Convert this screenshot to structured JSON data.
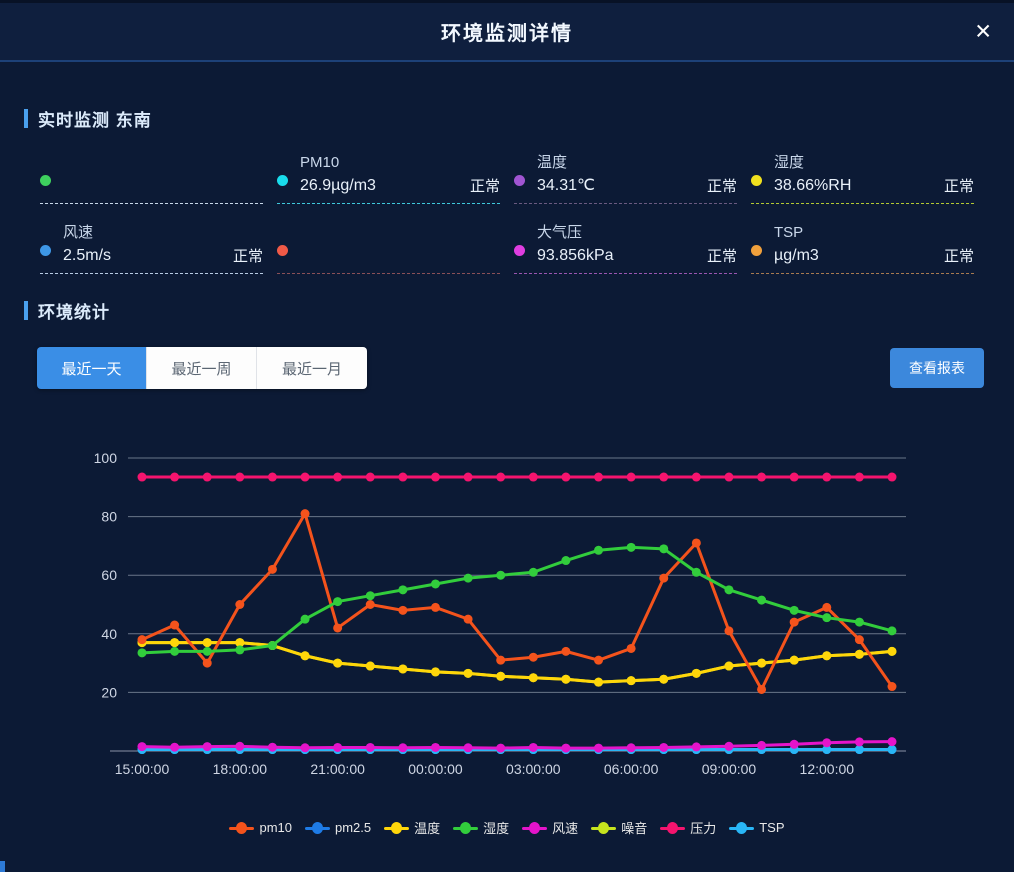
{
  "header": {
    "title": "环境监测详情",
    "close_glyph": "✕"
  },
  "realtime": {
    "section_title": "实时监测 东南",
    "cards": [
      {
        "label": "",
        "value": "",
        "status": "",
        "dot_color": "#3ed05e",
        "dash_color": "#c8d8ea"
      },
      {
        "label": "PM10",
        "value": "26.9µg/m3",
        "status": "正常",
        "dot_color": "#19dcec",
        "dash_color": "#3fc8dc"
      },
      {
        "label": "温度",
        "value": "34.31℃",
        "status": "正常",
        "dot_color": "#a155d2",
        "dash_color": "#6a5a80"
      },
      {
        "label": "湿度",
        "value": "38.66%RH",
        "status": "正常",
        "dot_color": "#f0e01e",
        "dash_color": "#b4c832"
      },
      {
        "label": "风速",
        "value": "2.5m/s",
        "status": "正常",
        "dot_color": "#3e97e6",
        "dash_color": "#b8cce4"
      },
      {
        "label": "",
        "value": "",
        "status": "",
        "dot_color": "#f15a47",
        "dash_color": "#8a5058"
      },
      {
        "label": "大气压",
        "value": "93.856kPa",
        "status": "正常",
        "dot_color": "#e03ee0",
        "dash_color": "#9a55b0"
      },
      {
        "label": "TSP",
        "value": "µg/m3",
        "status": "正常",
        "dot_color": "#f0a03c",
        "dash_color": "#a87a50"
      }
    ]
  },
  "stats": {
    "section_title": "环境统计",
    "tabs": [
      {
        "label": "最近一天",
        "active": true
      },
      {
        "label": "最近一周",
        "active": false
      },
      {
        "label": "最近一月",
        "active": false
      }
    ],
    "report_button": "查看报表"
  },
  "chart_data": {
    "type": "line",
    "title": "",
    "xlabel": "",
    "ylabel": "",
    "ylim": [
      0,
      100
    ],
    "y_ticks": [
      0,
      20,
      40,
      60,
      80,
      100
    ],
    "grid": true,
    "legend_position": "bottom",
    "tick_every": 3,
    "categories": [
      "15:00:00",
      "16:00:00",
      "17:00:00",
      "18:00:00",
      "19:00:00",
      "20:00:00",
      "21:00:00",
      "22:00:00",
      "23:00:00",
      "00:00:00",
      "01:00:00",
      "02:00:00",
      "03:00:00",
      "04:00:00",
      "05:00:00",
      "06:00:00",
      "07:00:00",
      "08:00:00",
      "09:00:00",
      "10:00:00",
      "11:00:00",
      "12:00:00",
      "13:00:00",
      "14:00:00"
    ],
    "shown_tick_labels": [
      "15:00:00",
      "18:00:00",
      "21:00:00",
      "00:00:00",
      "03:00:00",
      "06:00:00",
      "09:00:00",
      "12:00:00"
    ],
    "series": [
      {
        "name": "pm10",
        "color": "#f4531c",
        "values": [
          38,
          43,
          30,
          50,
          62,
          81,
          42,
          50,
          48,
          49,
          45,
          31,
          32,
          34,
          31,
          35,
          59,
          71,
          41,
          21,
          44,
          49,
          38,
          22
        ]
      },
      {
        "name": "pm2.5",
        "color": "#1e7be6",
        "values": [
          0.5,
          0.5,
          0.5,
          0.5,
          0.5,
          0.5,
          0.5,
          0.5,
          0.5,
          0.5,
          0.5,
          0.5,
          0.5,
          0.5,
          0.5,
          0.5,
          0.5,
          0.5,
          0.5,
          0.5,
          0.5,
          0.5,
          0.5,
          0.5
        ]
      },
      {
        "name": "温度",
        "color": "#ffd60a",
        "values": [
          37,
          37,
          37,
          37,
          36,
          32.5,
          30,
          29,
          28,
          27,
          26.5,
          25.5,
          25,
          24.5,
          23.5,
          24,
          24.5,
          26.5,
          29,
          30,
          31,
          32.5,
          33,
          34
        ]
      },
      {
        "name": "湿度",
        "color": "#32cd3c",
        "values": [
          33.5,
          34,
          34,
          34.5,
          36,
          45,
          51,
          53,
          55,
          57,
          59,
          60,
          61,
          65,
          68.5,
          69.5,
          69,
          61,
          55,
          51.5,
          48,
          45.5,
          44,
          41
        ]
      },
      {
        "name": "风速",
        "color": "#e414ca",
        "values": [
          1.5,
          1.3,
          1.5,
          1.6,
          1.3,
          1.1,
          1.2,
          1.2,
          1.1,
          1.2,
          1.1,
          1,
          1.2,
          1,
          1,
          1.1,
          1.2,
          1.4,
          1.6,
          1.9,
          2.3,
          2.8,
          3.1,
          3.2
        ]
      },
      {
        "name": "噪音",
        "color": "#c6e41e",
        "values": [
          37,
          37,
          37,
          37,
          36,
          32.5,
          30,
          29,
          28,
          27,
          26.5,
          25.5,
          25,
          24.5,
          23.5,
          24,
          24.5,
          26.5,
          29,
          30,
          31,
          32.5,
          33,
          34
        ]
      },
      {
        "name": "压力",
        "color": "#f5146e",
        "values": [
          93.5,
          93.5,
          93.5,
          93.5,
          93.5,
          93.5,
          93.5,
          93.5,
          93.5,
          93.5,
          93.5,
          93.5,
          93.5,
          93.5,
          93.5,
          93.5,
          93.5,
          93.5,
          93.5,
          93.5,
          93.5,
          93.5,
          93.5,
          93.5
        ]
      },
      {
        "name": "TSP",
        "color": "#29b6f6",
        "values": [
          0.5,
          0.5,
          0.5,
          0.5,
          0.5,
          0.5,
          0.5,
          0.5,
          0.5,
          0.5,
          0.5,
          0.5,
          0.5,
          0.5,
          0.5,
          0.5,
          0.5,
          0.5,
          0.5,
          0.5,
          0.5,
          0.5,
          0.5,
          0.5
        ]
      }
    ]
  }
}
